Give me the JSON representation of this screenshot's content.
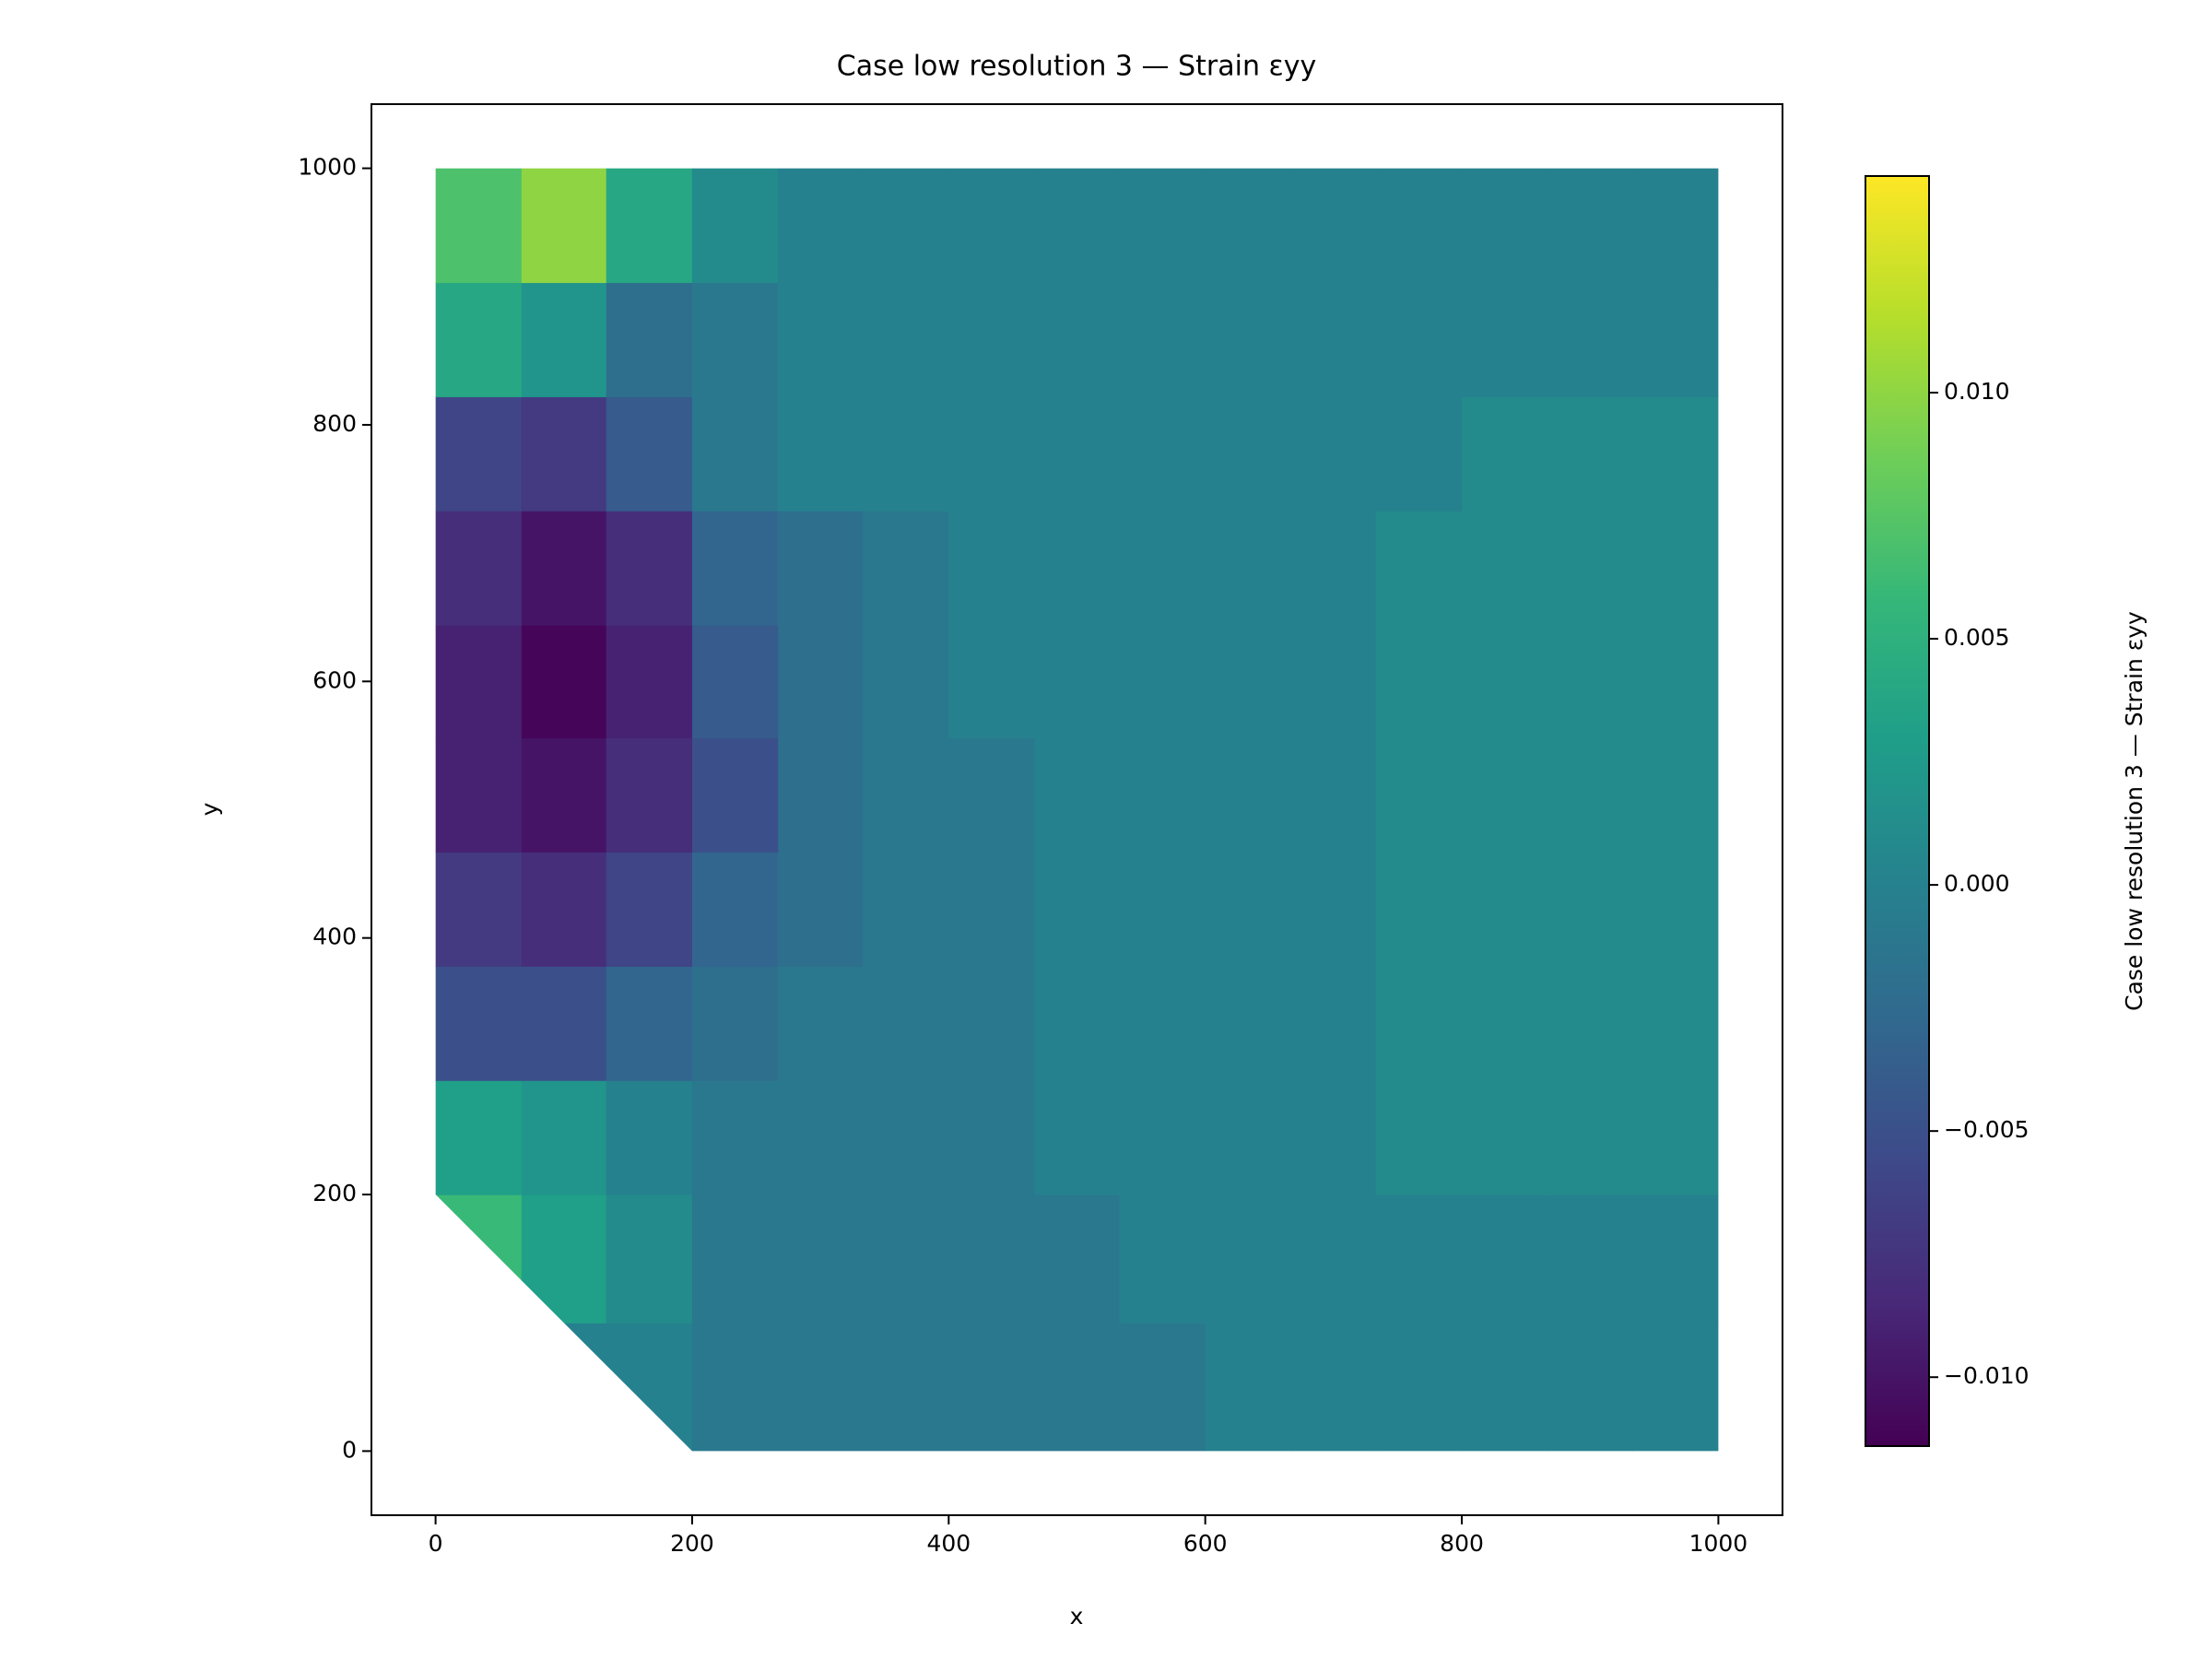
{
  "chart_data": {
    "type": "tripcolor",
    "title": "Case low resolution 3 — Strain εyy",
    "xlabel": "x",
    "ylabel": "y",
    "colorbar_label": "Case low resolution 3 — Strain εyy",
    "colormap": "viridis",
    "clim": [
      -0.0114,
      0.0144
    ],
    "xlim": [
      -50,
      1050
    ],
    "ylim": [
      -50,
      1050
    ],
    "xticks": [
      0,
      200,
      400,
      600,
      800,
      1000
    ],
    "yticks": [
      0,
      200,
      400,
      600,
      800,
      1000
    ],
    "cticks": [
      {
        "value": -0.01,
        "label": "−0.010"
      },
      {
        "value": -0.005,
        "label": "−0.005"
      },
      {
        "value": 0,
        "label": "0.000"
      },
      {
        "value": 0.005,
        "label": "0.005"
      },
      {
        "value": 0.01,
        "label": "0.010"
      }
    ],
    "boundary": {
      "x": [
        0,
        200,
        1000,
        1000,
        0
      ],
      "y": [
        200,
        0,
        0,
        1000,
        1000
      ]
    },
    "x_edges": [
      0,
      67,
      133,
      200,
      267,
      333,
      400,
      467,
      533,
      600,
      667,
      733,
      800,
      867,
      933,
      1000
    ],
    "y_edges": [
      0,
      100,
      200,
      289,
      378,
      467,
      556,
      644,
      733,
      822,
      911,
      1000
    ],
    "values": [
      [
        0,
        0,
        0,
        -0.001,
        -0.001,
        -0.001,
        -0.001,
        -0.001,
        -0.001,
        0,
        0,
        0,
        0,
        0,
        0
      ],
      [
        0.006,
        0.003,
        0.001,
        -0.001,
        -0.001,
        -0.001,
        -0.001,
        -0.001,
        0,
        0,
        0,
        0,
        0,
        0,
        0
      ],
      [
        0.003,
        0.002,
        0,
        -0.001,
        -0.001,
        -0.001,
        -0.001,
        0,
        0,
        0,
        0,
        0.001,
        0.001,
        0.001,
        0.001
      ],
      [
        -0.005,
        -0.005,
        -0.003,
        -0.002,
        -0.001,
        -0.001,
        -0.001,
        0,
        0,
        0,
        0,
        0.001,
        0.001,
        0.001,
        0.001
      ],
      [
        -0.007,
        -0.008,
        -0.006,
        -0.003,
        -0.002,
        -0.001,
        -0.001,
        0,
        0,
        0,
        0,
        0.001,
        0.001,
        0.001,
        0.001
      ],
      [
        -0.009,
        -0.01,
        -0.008,
        -0.005,
        -0.002,
        -0.001,
        -0.001,
        0,
        0,
        0,
        0,
        0.001,
        0.001,
        0.001,
        0.001
      ],
      [
        -0.009,
        -0.011,
        -0.009,
        -0.004,
        -0.002,
        -0.001,
        0,
        0,
        0,
        0,
        0,
        0.001,
        0.001,
        0.001,
        0.001
      ],
      [
        -0.008,
        -0.01,
        -0.008,
        -0.003,
        -0.002,
        -0.001,
        0,
        0,
        0,
        0,
        0,
        0.001,
        0.001,
        0.001,
        0.001
      ],
      [
        -0.006,
        -0.007,
        -0.004,
        -0.001,
        0,
        0,
        0,
        0,
        0,
        0,
        0,
        0,
        0.001,
        0.001,
        0.001
      ],
      [
        0.004,
        0.002,
        -0.002,
        -0.001,
        0,
        0,
        0,
        0,
        0,
        0,
        0,
        0,
        0,
        0,
        0
      ],
      [
        0.007,
        0.01,
        0.004,
        0.001,
        0,
        0,
        0,
        0,
        0,
        0,
        0,
        0,
        0,
        0,
        0
      ]
    ]
  }
}
